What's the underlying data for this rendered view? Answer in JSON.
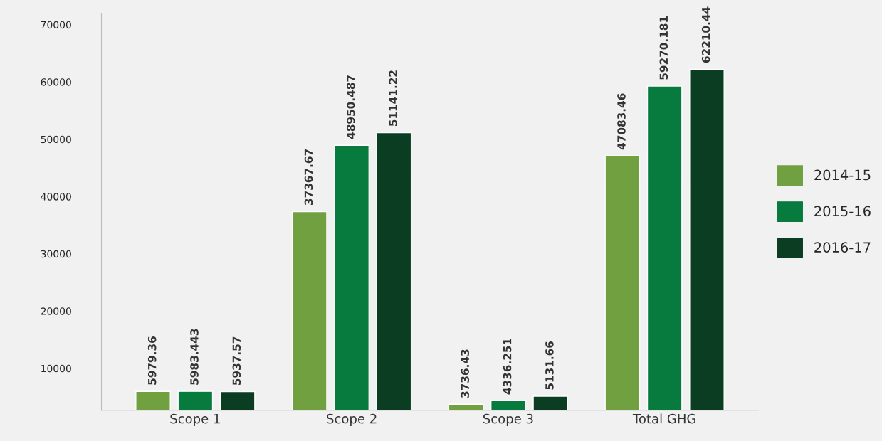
{
  "chart_data": {
    "type": "bar",
    "categories": [
      "Scope 1",
      "Scope 2",
      "Scope 3",
      "Total GHG"
    ],
    "series": [
      {
        "name": "2014-15",
        "color": "#70a040",
        "values": [
          5979.36,
          37367.67,
          3736.43,
          47083.46
        ],
        "value_labels": [
          "5979.36",
          "37367.67",
          "3736.43",
          "47083.46"
        ]
      },
      {
        "name": "2015-16",
        "color": "#077a3e",
        "values": [
          5983.443,
          48950.487,
          4336.251,
          59270.181
        ],
        "value_labels": [
          "5983.443",
          "48950.487",
          "4336.251",
          "59270.181"
        ]
      },
      {
        "name": "2016-17",
        "color": "#0a3d22",
        "values": [
          5937.57,
          51141.22,
          5131.66,
          62210.44
        ],
        "value_labels": [
          "5937.57",
          "51141.22",
          "5131.66",
          "62210.44"
        ]
      }
    ],
    "ylim": [
      2700,
      72000
    ],
    "yticks": [
      10000,
      20000,
      30000,
      40000,
      50000,
      60000,
      70000
    ],
    "grid": false,
    "legend": "right"
  }
}
